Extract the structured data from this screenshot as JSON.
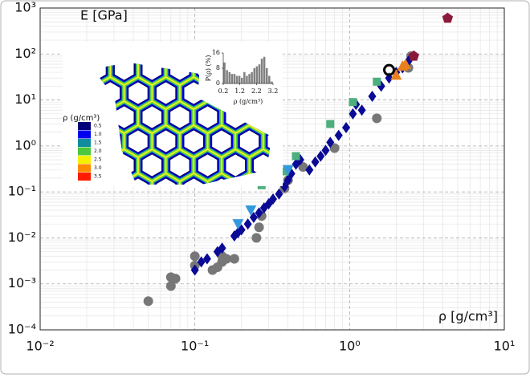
{
  "chart_data": [
    {
      "type": "scatter",
      "y_label": "E [GPa]",
      "x_label": "ρ [g/cm³]",
      "log_x": true,
      "log_y": true,
      "grid": true,
      "minor_grid": true,
      "xlim": [
        0.01,
        10
      ],
      "xticks": [
        {
          "value": 0.01,
          "label": "10⁻²"
        },
        {
          "value": 0.1,
          "label": "10⁻¹"
        },
        {
          "value": 1,
          "label": "10⁰"
        },
        {
          "value": 10,
          "label": "10¹"
        }
      ],
      "ylim": [
        0.0001,
        1000
      ],
      "yticks": [
        {
          "value": 0.0001,
          "label": "10⁻⁴"
        },
        {
          "value": 0.001,
          "label": "10⁻³"
        },
        {
          "value": 0.01,
          "label": "10⁻²"
        },
        {
          "value": 0.1,
          "label": "10⁻¹"
        },
        {
          "value": 1,
          "label": "10⁰"
        },
        {
          "value": 10,
          "label": "10¹"
        },
        {
          "value": 100,
          "label": "10²"
        },
        {
          "value": 1000,
          "label": "10³"
        }
      ],
      "series": [
        {
          "color": "#777777",
          "marker": "circle",
          "x": [
            0.05,
            0.07,
            0.07,
            0.075,
            0.1,
            0.1,
            0.13,
            0.14,
            0.15,
            0.15,
            0.16,
            0.18,
            0.25,
            0.27,
            0.26,
            0.38,
            0.4,
            0.5,
            0.8,
            1.5,
            2.4,
            2.5
          ],
          "values": [
            0.00042,
            0.0014,
            0.0009,
            0.0013,
            0.004,
            0.0025,
            0.002,
            0.0023,
            0.004,
            0.003,
            0.0035,
            0.0035,
            0.01,
            0.03,
            0.017,
            0.12,
            0.18,
            0.35,
            0.9,
            4,
            50,
            90
          ]
        },
        {
          "color": "#0a0a96",
          "marker": "diamond",
          "x": [
            0.1,
            0.11,
            0.12,
            0.14,
            0.15,
            0.18,
            0.19,
            0.2,
            0.22,
            0.24,
            0.26,
            0.28,
            0.3,
            0.32,
            0.35,
            0.38,
            0.4,
            0.42,
            0.45,
            0.48,
            0.55,
            0.6,
            0.65,
            0.7,
            0.75,
            0.85,
            0.95,
            1.05,
            1.1,
            1.2,
            1.4,
            1.6,
            1.8,
            2.0,
            2.2,
            2.4
          ],
          "values": [
            0.002,
            0.003,
            0.0035,
            0.005,
            0.006,
            0.011,
            0.013,
            0.015,
            0.02,
            0.028,
            0.035,
            0.045,
            0.055,
            0.07,
            0.09,
            0.13,
            0.18,
            0.25,
            0.4,
            0.5,
            0.3,
            0.45,
            0.6,
            0.8,
            1.2,
            1.7,
            2.5,
            5,
            8,
            6,
            12,
            20,
            30,
            40,
            50,
            70
          ]
        },
        {
          "color": "#4caf7d",
          "marker": "square",
          "x": [
            0.27,
            0.33,
            0.38,
            0.45,
            0.75,
            1.05,
            1.5
          ],
          "values": [
            0.14,
            0.2,
            0.28,
            0.6,
            3,
            9,
            25
          ]
        },
        {
          "color": "#3399dd",
          "marker": "triangle-down",
          "x": [
            0.19,
            0.23,
            0.4
          ],
          "values": [
            0.02,
            0.04,
            0.3
          ]
        },
        {
          "color": "#e8801e",
          "marker": "triangle-up",
          "x": [
            2.0,
            2.2,
            2.3
          ],
          "values": [
            35,
            55,
            60
          ]
        },
        {
          "color": "#8b1a3a",
          "marker": "pentagon",
          "x": [
            4.3,
            2.6
          ],
          "values": [
            600,
            90
          ]
        },
        {
          "color": "#000000",
          "marker": "open-circle",
          "x": [
            1.8
          ],
          "values": [
            45
          ]
        }
      ],
      "colorbar": {
        "title": "ρ (g/cm³)",
        "ticks": [
          0.5,
          {
            "value": 1,
            "label": "1.0"
          },
          1.5,
          {
            "value": 2,
            "label": "2.0"
          },
          2.5,
          {
            "value": 3,
            "label": "3.0"
          },
          3.5
        ],
        "colors": [
          "#00007a",
          "#0000ee",
          "#108c9c",
          "#4cc83c",
          "#f4f000",
          "#ff8a00",
          "#ff1a00"
        ]
      }
    },
    {
      "type": "histogram",
      "y_label": "P(ρ) (%)",
      "x_label": "ρ (g/cm³)",
      "color": "#808080",
      "bins": [
        0.2,
        0.35,
        0.5,
        0.65,
        0.8,
        0.95,
        1.1,
        1.25,
        1.4,
        1.55,
        1.7,
        1.85,
        2.0,
        2.15,
        2.3,
        2.45,
        2.6,
        2.75,
        2.9,
        3.05,
        3.2
      ],
      "values": [
        11,
        7,
        6,
        5,
        5,
        4,
        4,
        3,
        6,
        4,
        5,
        6,
        8,
        9,
        10,
        13,
        14,
        8,
        4,
        1
      ],
      "xlim": [
        0.2,
        3.2
      ],
      "xticks": [
        0.2,
        1.2,
        2.2,
        3.2
      ],
      "ylim": [
        0,
        16
      ],
      "yticks": [
        0,
        8,
        16
      ]
    }
  ]
}
